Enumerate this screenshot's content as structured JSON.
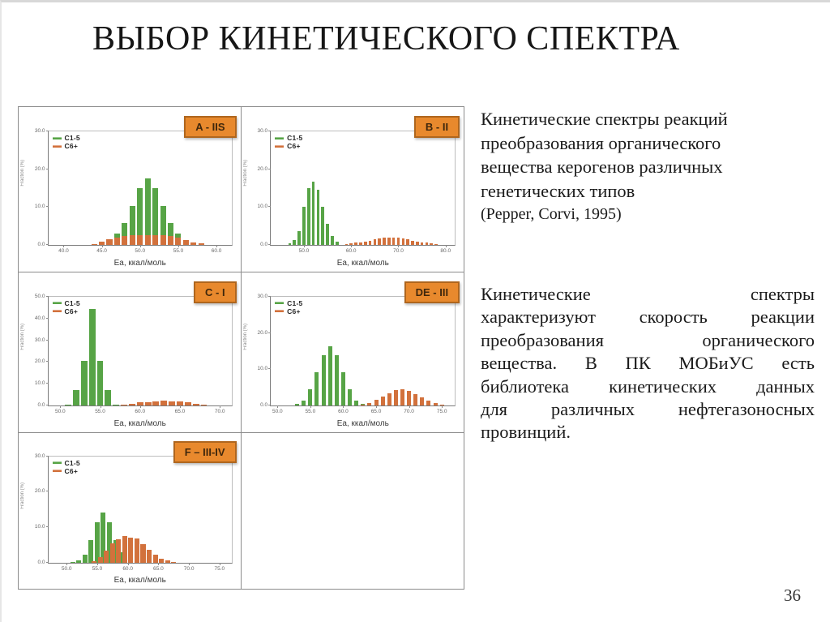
{
  "slide": {
    "title": "ВЫБОР КИНЕТИЧЕСКОГО СПЕКТРА",
    "page_number": "36"
  },
  "text_blocks": {
    "block1": {
      "lines": [
        "Кинетические спектры реакций",
        "преобразования органического",
        "вещества керогенов различных",
        "генетических типов"
      ],
      "citation": "(Pepper, Corvi, 1995)"
    },
    "block2": {
      "lines": [
        "Кинетические спектры",
        "характеризуют скорость реакции",
        "преобразования органического",
        "вещества. В ПК МОБиУС есть",
        "библиотека кинетических данных",
        "для различных нефтегазоносных",
        "провинций."
      ]
    }
  },
  "colors": {
    "bar_green": "#57A446",
    "bar_orange": "#D2713C",
    "facies_bg": "#E8892D",
    "facies_border": "#AF661E",
    "facies_text": "#3F270C",
    "grid_line": "#8C8C8C"
  },
  "chart_data": [
    {
      "type": "bar",
      "label": "A - IIS",
      "xlabel": "Ea, ккал/моль",
      "ylabel": "Fraction (%)",
      "legend": [
        "C1-5",
        "C6+"
      ],
      "xlim": [
        38,
        62
      ],
      "ylim": [
        0,
        30
      ],
      "xticks": [
        40,
        45,
        50,
        55,
        60
      ],
      "yticks": [
        0,
        10,
        20,
        30
      ],
      "bar_width": 0.75,
      "series": [
        {
          "name": "C1-5",
          "color": "#57A446",
          "points": [
            [
              45,
              0.4
            ],
            [
              46,
              1.2
            ],
            [
              47,
              3.0
            ],
            [
              48,
              5.8
            ],
            [
              49,
              10.2
            ],
            [
              50,
              15.0
            ],
            [
              51,
              17.6
            ],
            [
              52,
              15.0
            ],
            [
              53,
              10.2
            ],
            [
              54,
              5.8
            ],
            [
              55,
              3.0
            ],
            [
              56,
              1.2
            ],
            [
              57,
              0.4
            ]
          ]
        },
        {
          "name": "C6+",
          "color": "#D2713C",
          "points": [
            [
              44,
              0.25
            ],
            [
              45,
              0.8
            ],
            [
              46,
              1.5
            ],
            [
              47,
              2.0
            ],
            [
              48,
              2.3
            ],
            [
              49,
              2.5
            ],
            [
              50,
              2.6
            ],
            [
              51,
              2.6
            ],
            [
              52,
              2.6
            ],
            [
              53,
              2.5
            ],
            [
              54,
              2.3
            ],
            [
              55,
              1.9
            ],
            [
              56,
              1.2
            ],
            [
              57,
              0.6
            ],
            [
              58,
              0.3
            ]
          ]
        }
      ]
    },
    {
      "type": "bar",
      "label": "B - II",
      "xlabel": "Ea, ккал/моль",
      "ylabel": "Fraction (%)",
      "legend": [
        "C1-5",
        "C6+"
      ],
      "xlim": [
        43,
        82
      ],
      "ylim": [
        0,
        30
      ],
      "xticks": [
        50,
        60,
        70,
        80
      ],
      "yticks": [
        0,
        10,
        20,
        30
      ],
      "bar_width": 0.62,
      "series": [
        {
          "name": "C1-5",
          "color": "#57A446",
          "points": [
            [
              47,
              0.4
            ],
            [
              48,
              1.3
            ],
            [
              49,
              3.7
            ],
            [
              50,
              10.0
            ],
            [
              51,
              15.0
            ],
            [
              52,
              16.8
            ],
            [
              53,
              14.6
            ],
            [
              54,
              10.0
            ],
            [
              55,
              5.6
            ],
            [
              56,
              2.3
            ],
            [
              57,
              0.9
            ]
          ]
        },
        {
          "name": "C6+",
          "color": "#D2713C",
          "points": [
            [
              59,
              0.2
            ],
            [
              60,
              0.35
            ],
            [
              61,
              0.5
            ],
            [
              62,
              0.7
            ],
            [
              63,
              0.9
            ],
            [
              64,
              1.1
            ],
            [
              65,
              1.4
            ],
            [
              66,
              1.6
            ],
            [
              67,
              1.8
            ],
            [
              68,
              1.9
            ],
            [
              69,
              1.9
            ],
            [
              70,
              1.8
            ],
            [
              71,
              1.6
            ],
            [
              72,
              1.4
            ],
            [
              73,
              1.1
            ],
            [
              74,
              0.9
            ],
            [
              75,
              0.7
            ],
            [
              76,
              0.5
            ],
            [
              77,
              0.35
            ],
            [
              78,
              0.25
            ]
          ]
        }
      ]
    },
    {
      "type": "bar",
      "label": "C - I",
      "xlabel": "Ea, ккал/моль",
      "ylabel": "Fraction (%)",
      "legend": [
        "C1-5",
        "C6+"
      ],
      "xlim": [
        48.5,
        71.5
      ],
      "ylim": [
        0,
        50
      ],
      "xticks": [
        50,
        55,
        60,
        65,
        70
      ],
      "yticks": [
        0,
        10,
        20,
        30,
        40,
        50
      ],
      "bar_width": 0.8,
      "series": [
        {
          "name": "C1-5",
          "color": "#57A446",
          "points": [
            [
              51,
              0.4
            ],
            [
              52,
              7.0
            ],
            [
              53,
              20.5
            ],
            [
              54,
              44.5
            ],
            [
              55,
              20.5
            ],
            [
              56,
              7.0
            ],
            [
              57,
              0.4
            ]
          ]
        },
        {
          "name": "C6+",
          "color": "#D2713C",
          "points": [
            [
              58,
              0.6
            ],
            [
              59,
              1.0
            ],
            [
              60,
              1.4
            ],
            [
              61,
              1.7
            ],
            [
              62,
              1.9
            ],
            [
              63,
              2.2
            ],
            [
              64,
              2.1
            ],
            [
              65,
              1.8
            ],
            [
              66,
              1.4
            ],
            [
              67,
              0.9
            ],
            [
              68,
              0.5
            ]
          ]
        }
      ]
    },
    {
      "type": "bar",
      "label": "DE - III",
      "xlabel": "Ea, ккал/моль",
      "ylabel": "Fraction (%)",
      "legend": [
        "C1-5",
        "C6+"
      ],
      "xlim": [
        49,
        77
      ],
      "ylim": [
        0,
        30
      ],
      "xticks": [
        50,
        55,
        60,
        65,
        70,
        75
      ],
      "yticks": [
        0,
        10,
        20,
        30
      ],
      "bar_width": 0.62,
      "series": [
        {
          "name": "C1-5",
          "color": "#57A446",
          "points": [
            [
              53,
              0.4
            ],
            [
              54,
              1.5
            ],
            [
              55,
              4.5
            ],
            [
              56,
              9.3
            ],
            [
              57,
              13.8
            ],
            [
              58,
              16.3
            ],
            [
              59,
              13.8
            ],
            [
              60,
              9.3
            ],
            [
              61,
              4.5
            ],
            [
              62,
              1.5
            ],
            [
              63,
              0.4
            ]
          ]
        },
        {
          "name": "C6+",
          "color": "#D2713C",
          "points": [
            [
              63,
              0.3
            ],
            [
              64,
              0.8
            ],
            [
              65,
              1.6
            ],
            [
              66,
              2.6
            ],
            [
              67,
              3.5
            ],
            [
              68,
              4.3
            ],
            [
              69,
              4.5
            ],
            [
              70,
              4.0
            ],
            [
              71,
              3.2
            ],
            [
              72,
              2.3
            ],
            [
              73,
              1.4
            ],
            [
              74,
              0.7
            ],
            [
              75,
              0.3
            ]
          ]
        }
      ]
    },
    {
      "type": "bar",
      "label": "F – III-IV",
      "xlabel": "Ea, ккал/моль",
      "ylabel": "Fraction (%)",
      "legend": [
        "C1-5",
        "C6+"
      ],
      "xlim": [
        47,
        77
      ],
      "ylim": [
        0,
        30
      ],
      "xticks": [
        50,
        55,
        60,
        65,
        70,
        75
      ],
      "yticks": [
        0,
        10,
        20,
        30
      ],
      "bar_width": 0.8,
      "series": [
        {
          "name": "C1-5",
          "color": "#57A446",
          "points": [
            [
              51,
              0.3
            ],
            [
              52,
              0.8
            ],
            [
              53,
              2.3
            ],
            [
              54,
              6.4
            ],
            [
              55,
              11.5
            ],
            [
              56,
              14.2
            ],
            [
              57,
              11.5
            ],
            [
              58,
              6.5
            ],
            [
              59,
              3.0
            ]
          ]
        },
        {
          "name": "C6+",
          "color": "#D2713C",
          "points": [
            [
              54.5,
              0.5
            ],
            [
              55.5,
              1.7
            ],
            [
              56.5,
              3.4
            ],
            [
              57.5,
              5.5
            ],
            [
              58.5,
              6.6
            ],
            [
              59.5,
              7.5
            ],
            [
              60.5,
              7.2
            ],
            [
              61.5,
              6.8
            ],
            [
              62.5,
              5.3
            ],
            [
              63.5,
              3.7
            ],
            [
              64.5,
              2.3
            ],
            [
              65.5,
              1.3
            ],
            [
              66.5,
              0.7
            ],
            [
              67.5,
              0.35
            ]
          ]
        }
      ]
    }
  ]
}
